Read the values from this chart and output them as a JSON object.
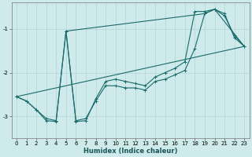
{
  "xlabel": "Humidex (Indice chaleur)",
  "bg_color": "#ceeaea",
  "grid_color": "#b8d8d8",
  "line_color": "#1a6b6b",
  "xlim": [
    -0.5,
    23.5
  ],
  "ylim": [
    -3.5,
    -0.4
  ],
  "yticks": [
    -3,
    -2,
    -1
  ],
  "xticks": [
    0,
    1,
    2,
    3,
    4,
    5,
    6,
    7,
    8,
    9,
    10,
    11,
    12,
    13,
    14,
    15,
    16,
    17,
    18,
    19,
    20,
    21,
    22,
    23
  ],
  "line1_x": [
    0,
    1,
    2,
    3,
    4,
    5,
    6,
    7,
    8,
    9,
    10,
    11,
    12,
    13,
    14,
    15,
    16,
    17,
    18,
    19,
    20,
    21,
    22,
    23
  ],
  "line1_y": [
    -2.55,
    -2.65,
    -2.85,
    -3.05,
    -3.1,
    -1.05,
    -3.1,
    -3.05,
    -2.65,
    -2.3,
    -2.3,
    -2.35,
    -2.35,
    -2.4,
    -2.2,
    -2.15,
    -2.05,
    -1.95,
    -1.45,
    -0.65,
    -0.55,
    -0.7,
    -1.15,
    -1.4
  ],
  "line2_x": [
    0,
    1,
    2,
    3,
    4,
    5,
    6,
    7,
    8,
    9,
    10,
    11,
    12,
    13,
    14,
    15,
    16,
    17,
    18,
    19,
    20,
    21,
    22,
    23
  ],
  "line2_y": [
    -2.55,
    -2.65,
    -2.85,
    -3.1,
    -3.12,
    -1.05,
    -3.12,
    -3.1,
    -2.6,
    -2.2,
    -2.15,
    -2.2,
    -2.25,
    -2.3,
    -2.1,
    -2.0,
    -1.9,
    -1.75,
    -0.6,
    -0.6,
    -0.55,
    -0.65,
    -1.2,
    -1.4
  ],
  "line3_x": [
    0,
    23
  ],
  "line3_y": [
    -2.55,
    -1.4
  ],
  "line4_x": [
    5,
    19,
    20,
    23
  ],
  "line4_y": [
    -1.05,
    -0.65,
    -0.55,
    -1.4
  ]
}
